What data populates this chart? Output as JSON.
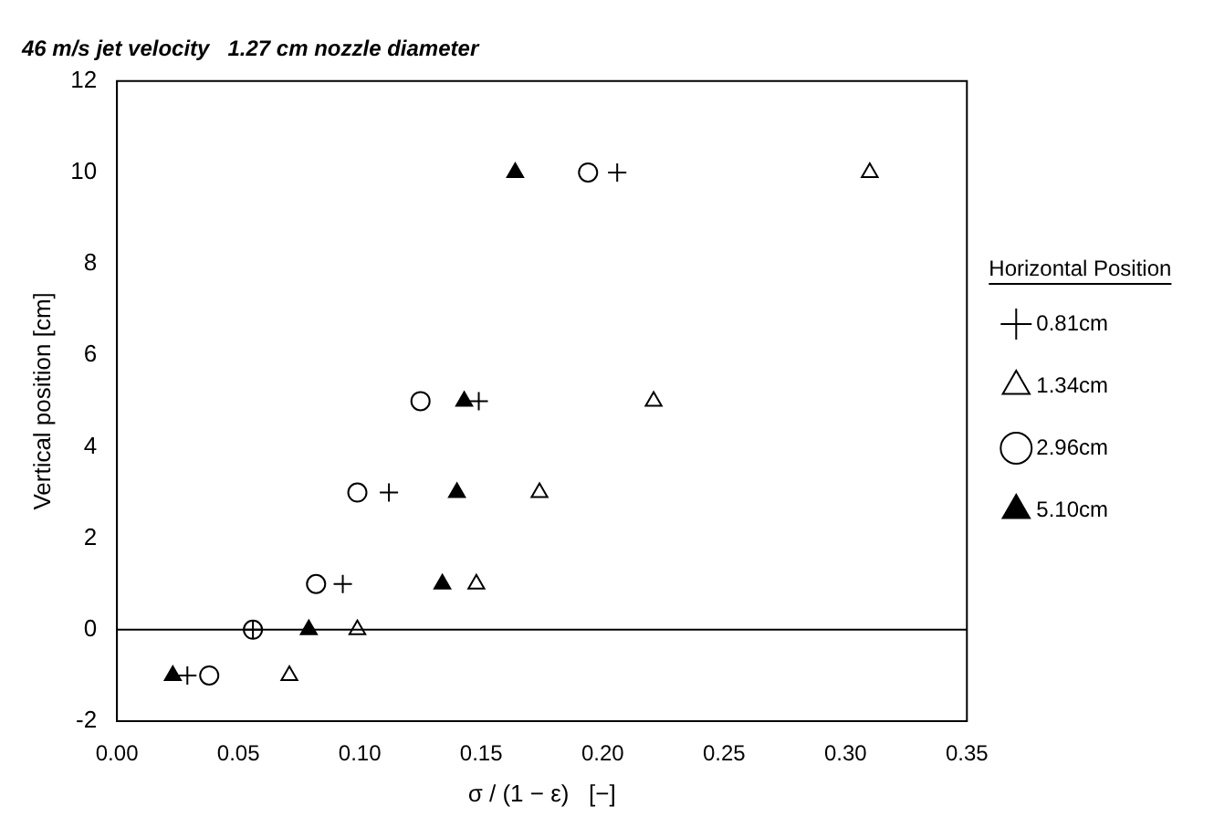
{
  "chart_data": {
    "type": "scatter",
    "title": "46 m/s jet velocity   1.27 cm nozzle diameter",
    "xlabel": "σ / (1 − ε)   [−]",
    "ylabel": "Vertical position [cm]",
    "legend_title": "Horizontal Position",
    "legend": "right",
    "grid": false,
    "xlim": [
      0,
      0.35
    ],
    "xticks": [
      {
        "value": 0,
        "label": "0.00"
      },
      {
        "value": 0.05,
        "label": "0.05"
      },
      {
        "value": 0.1,
        "label": "0.10"
      },
      {
        "value": 0.15,
        "label": "0.15"
      },
      {
        "value": 0.2,
        "label": "0.20"
      },
      {
        "value": 0.25,
        "label": "0.25"
      },
      {
        "value": 0.3,
        "label": "0.30"
      },
      {
        "value": 0.35,
        "label": "0.35"
      }
    ],
    "ylim": [
      -2,
      12
    ],
    "yticks": [
      -2,
      0,
      2,
      4,
      6,
      8,
      10,
      12
    ],
    "ref_lines": [
      {
        "axis": "y",
        "value": 0,
        "color": "#000000"
      }
    ],
    "series": [
      {
        "name": "0.81cm",
        "color": "#000000",
        "marker": "cross",
        "x": [
          0.029,
          0.056,
          0.093,
          0.112,
          0.149,
          0.206
        ],
        "values": [
          -1,
          0,
          1,
          3,
          5,
          10
        ]
      },
      {
        "name": "1.34cm",
        "color": "#000000",
        "marker": "triangle",
        "x": [
          0.071,
          0.099,
          0.148,
          0.174,
          0.221,
          0.31
        ],
        "values": [
          -1,
          0,
          1,
          3,
          5,
          10
        ]
      },
      {
        "name": "2.96cm",
        "color": "#000000",
        "marker": "circle",
        "x": [
          0.038,
          0.056,
          0.082,
          0.099,
          0.125,
          0.194
        ],
        "values": [
          -1,
          0,
          1,
          3,
          5,
          10
        ]
      },
      {
        "name": "5.10cm",
        "color": "#000000",
        "marker": "triangle",
        "x": [
          0.023,
          0.079,
          0.134,
          0.14,
          0.143,
          0.164
        ],
        "values": [
          -1,
          0,
          1,
          3,
          5,
          10
        ]
      }
    ]
  }
}
